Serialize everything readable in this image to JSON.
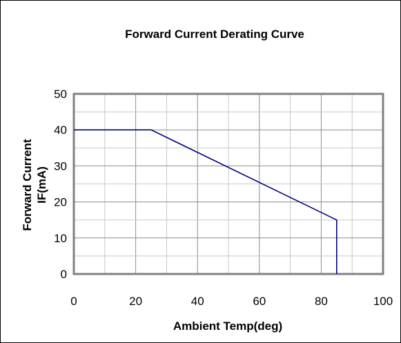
{
  "chart_data": {
    "type": "line",
    "title": "Forward Current Derating Curve",
    "xlabel": "Ambient Temp(deg)",
    "ylabel_lines": [
      "Forward Current",
      "IF(mA)"
    ],
    "xlim": [
      0,
      100
    ],
    "ylim": [
      0,
      50
    ],
    "x_ticks": [
      0,
      20,
      40,
      60,
      80,
      100
    ],
    "y_ticks": [
      0,
      10,
      20,
      30,
      40,
      50
    ],
    "x_minor_step": 10,
    "y_minor_step": 5,
    "grid": true,
    "line_color": "#000080",
    "series": [
      {
        "x": [
          0,
          25,
          85,
          85
        ],
        "y": [
          40,
          40,
          15,
          0
        ]
      }
    ]
  }
}
